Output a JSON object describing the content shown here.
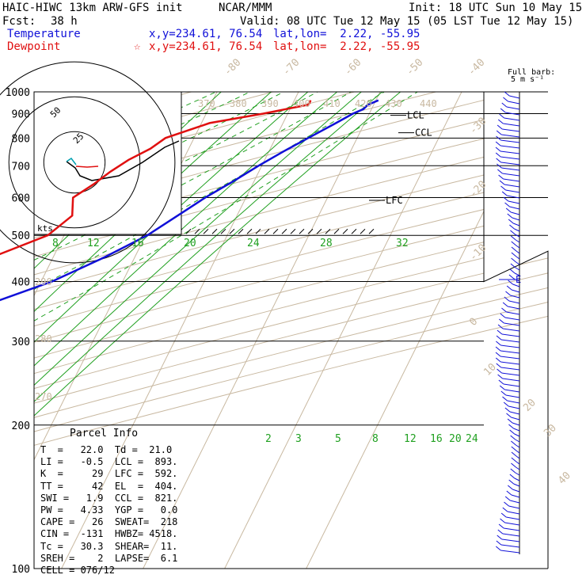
{
  "header": {
    "model": "HAIC-HIWC 13km ARW-GFS init",
    "agency": "NCAR/MMM",
    "init": "Init: 18 UTC Sun 10 May 15",
    "fcst_label": "Fcst:",
    "fcst_value": "38 h",
    "valid": "Valid: 08 UTC Tue 12 May 15 (05 LST Tue 12 May 15)",
    "temp_label": "Temperature",
    "temp_xy": "x,y=234.61, 76.54",
    "temp_latlon": "lat,lon=  2.22, -55.95",
    "dew_label": "Dewpoint",
    "dew_xy": "x,y=234.61, 76.54",
    "dew_latlon": "lat,lon=  2.22, -55.95",
    "barb_title_1": "Full barb:",
    "barb_title_2": "5 m s⁻¹",
    "hodo_units": "kts"
  },
  "colors": {
    "temperature": "#1010d8",
    "dewpoint": "#e01010",
    "isotherm": "#c8b8a0",
    "mixing_ratio": "#20a020",
    "grid": "#000000"
  },
  "chart_data": {
    "type": "line",
    "chart_kind": "skew-T log-p sounding",
    "y_axis": {
      "scale": "log",
      "range": [
        1000,
        100
      ],
      "ticks": [
        "100",
        "200",
        "300",
        "400",
        "500",
        "600",
        "700",
        "800",
        "900",
        "1000"
      ]
    },
    "skewed_isotherm_labels": [
      "-80",
      "-70",
      "-60",
      "-50",
      "-40",
      "-30",
      "-20",
      "-10",
      "0",
      "10",
      "20",
      "30",
      "40"
    ],
    "theta_labels": [
      "370",
      "380",
      "390",
      "400",
      "410",
      "420",
      "430",
      "440",
      "290",
      "280",
      "270"
    ],
    "mixing_ratio_upper": [
      "8",
      "12",
      "16",
      "20",
      "24",
      "28",
      "32"
    ],
    "mixing_ratio_lower": [
      "2",
      "3",
      "5",
      "8",
      "12",
      "16",
      "20",
      "24"
    ],
    "series": [
      {
        "name": "Temperature",
        "points": [
          [
            960,
            30.3
          ],
          [
            940,
            29.3
          ],
          [
            920,
            29.0
          ],
          [
            900,
            28.0
          ],
          [
            860,
            26.5
          ],
          [
            800,
            24.0
          ],
          [
            750,
            21.8
          ],
          [
            700,
            19.6
          ],
          [
            650,
            17.5
          ],
          [
            600,
            15.0
          ],
          [
            560,
            13.2
          ],
          [
            500,
            10.2
          ],
          [
            450,
            6.3
          ],
          [
            400,
            1.3
          ],
          [
            350,
            -6.5
          ],
          [
            300,
            -14.3
          ],
          [
            260,
            -22.0
          ],
          [
            220,
            -31.0
          ],
          [
            200,
            -37.0
          ],
          [
            180,
            -42.0
          ],
          [
            160,
            -49.0
          ],
          [
            140,
            -56.0
          ],
          [
            125,
            -64.0
          ],
          [
            112,
            -71.0
          ],
          [
            104,
            -75.5
          ],
          [
            100,
            -77.0
          ]
        ]
      },
      {
        "name": "Dewpoint",
        "points": [
          [
            960,
            22.0
          ],
          [
            940,
            22.0
          ],
          [
            920,
            19.5
          ],
          [
            900,
            17.0
          ],
          [
            860,
            11.0
          ],
          [
            800,
            6.5
          ],
          [
            760,
            5.3
          ],
          [
            720,
            3.3
          ],
          [
            680,
            1.8
          ],
          [
            640,
            0.5
          ],
          [
            600,
            -1.2
          ],
          [
            550,
            -0.2
          ],
          [
            500,
            -2.0
          ],
          [
            450,
            -7.5
          ],
          [
            400,
            -13.5
          ],
          [
            350,
            -20.0
          ],
          [
            300,
            -27.5
          ],
          [
            260,
            -31.5
          ],
          [
            230,
            -32.0
          ],
          [
            210,
            -37.0
          ],
          [
            200,
            -46.0
          ],
          [
            188,
            -49.0
          ],
          [
            175,
            -54.0
          ],
          [
            150,
            -61.0
          ],
          [
            135,
            -68.0
          ],
          [
            120,
            -75.5
          ],
          [
            110,
            -79.0
          ],
          [
            104,
            -80.5
          ],
          [
            100,
            -82.0
          ]
        ]
      }
    ],
    "levels": [
      {
        "label": "LFC",
        "pressure": 592
      },
      {
        "label": "CCL",
        "pressure": 821
      },
      {
        "label": "LCL",
        "pressure": 893
      },
      {
        "label": "E",
        "pressure": 404
      }
    ]
  },
  "parcel": {
    "title": "Parcel Info",
    "rows": [
      "T  =   22.0  Td =  21.0",
      "LI =   -0.5  LCL =  893.",
      "K  =     29  LFC =  592.",
      "TT =     42  EL  =  404.",
      "SWI =   1.9  CCL =  821.",
      "PW =   4.33  YGP =   0.0",
      "CAPE =   26  SWEAT=  218",
      "CIN =  -131  HWBZ= 4518.",
      "Tc =   30.3  SHEAR=  11.",
      "SREH =    2  LAPSE=  6.1",
      "CELL = 076/12"
    ]
  }
}
